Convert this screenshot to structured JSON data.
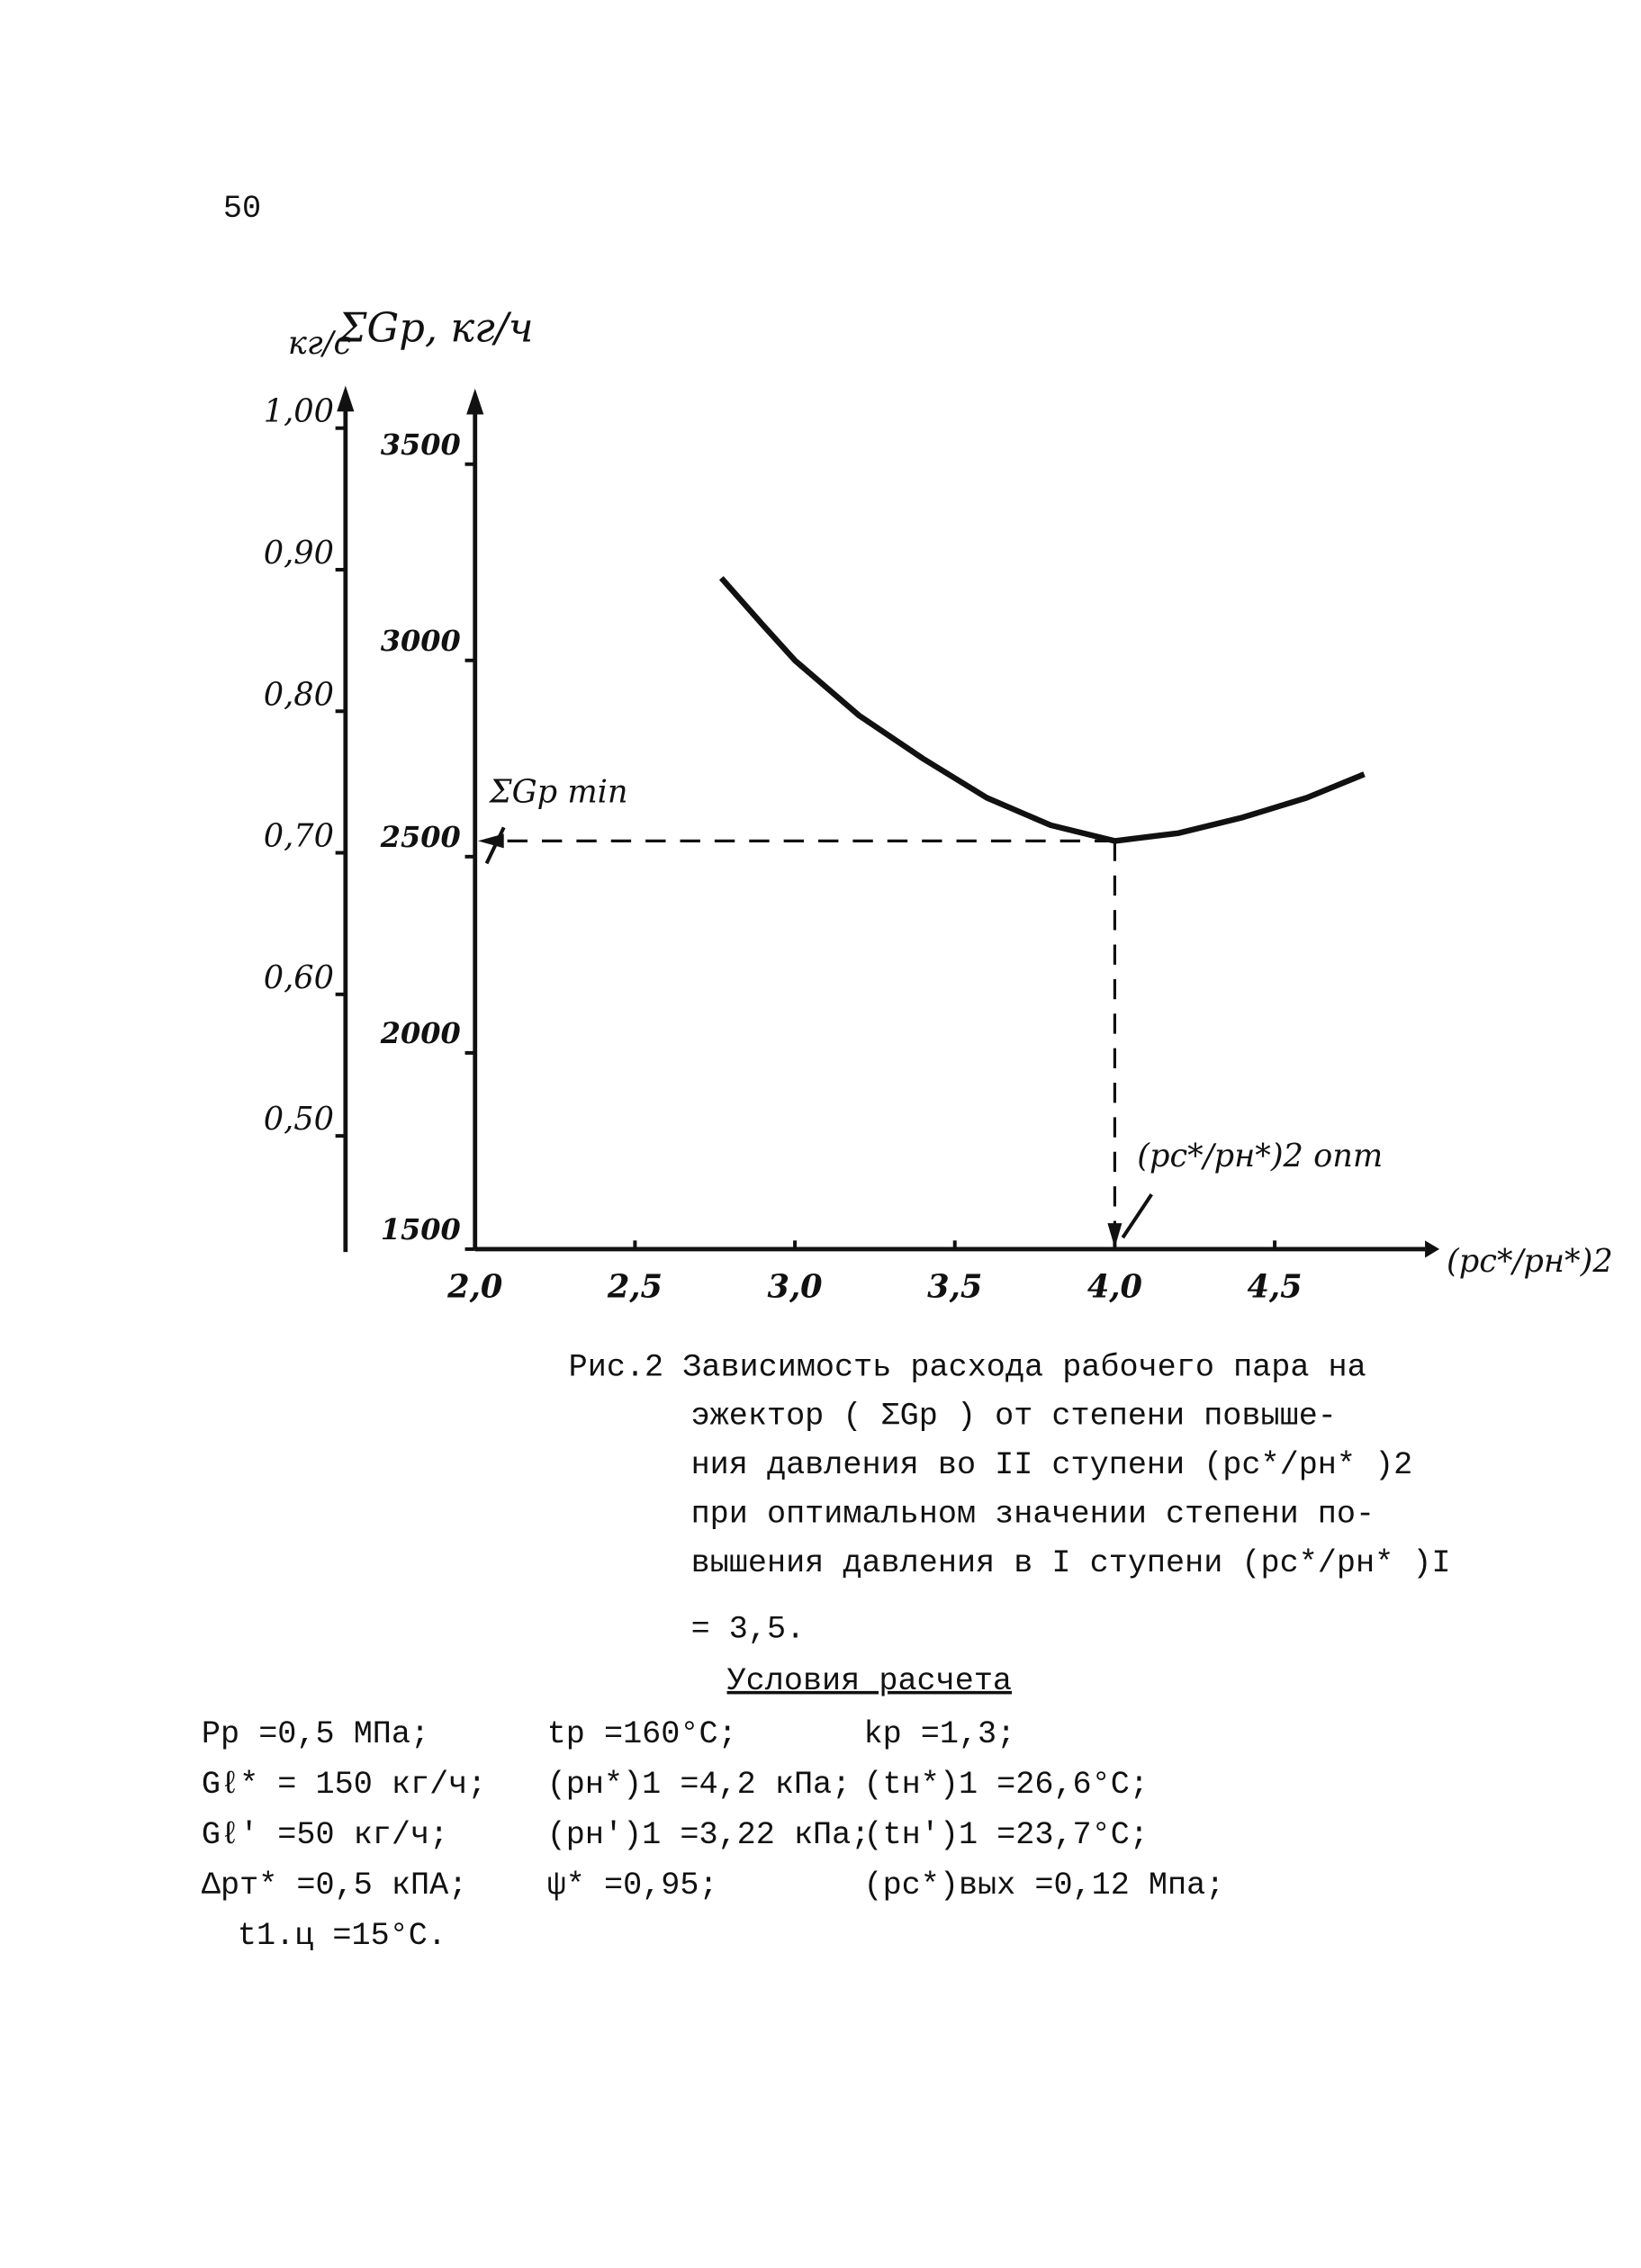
{
  "page_number": "50",
  "chart_data": {
    "type": "line",
    "y_label": "ΣGp, кг/ч",
    "y2_label": "кг/с",
    "x_label": "(pc*/pн*)2",
    "annotations": [
      "ΣGp min",
      "(pc*/pн*)2 опт"
    ],
    "x": [
      2.77,
      2.9,
      3.0,
      3.2,
      3.4,
      3.6,
      3.8,
      4.0,
      4.2,
      4.4,
      4.6,
      4.78
    ],
    "series": [
      {
        "name": "ΣGp",
        "color": "#111111",
        "values": [
          3210,
          3090,
          3000,
          2860,
          2750,
          2650,
          2580,
          2540,
          2560,
          2600,
          2650,
          2710
        ]
      }
    ],
    "xlim": [
      2.0,
      4.97
    ],
    "xticks": [
      {
        "value": 2.0,
        "label": "2,0"
      },
      {
        "value": 2.5,
        "label": "2,5"
      },
      {
        "value": 3.0,
        "label": "3,0"
      },
      {
        "value": 3.5,
        "label": "3,5"
      },
      {
        "value": 4.0,
        "label": "4,0"
      },
      {
        "value": 4.5,
        "label": "4,5"
      }
    ],
    "ylim": [
      1500,
      3700
    ],
    "yticks": [
      1500,
      2000,
      2500,
      3000,
      3500
    ],
    "y2lim": [
      0.42,
      1.03
    ],
    "y2ticks": [
      {
        "value": 0.5,
        "label": "0,50"
      },
      {
        "value": 0.6,
        "label": "0,60"
      },
      {
        "value": 0.7,
        "label": "0,70"
      },
      {
        "value": 0.8,
        "label": "0,80"
      },
      {
        "value": 0.9,
        "label": "0,90"
      },
      {
        "value": 1.0,
        "label": "1,00"
      }
    ]
  },
  "caption": [
    "Рис.2 Зависимость расхода рабочего пара на",
    "эжектор ( ΣGр ) от степени повыше-",
    "ния давления во II ступени (pc*/pн* )2",
    "при оптимальном значении степени по-",
    "вышения давления в I ступени (pc*/pн* )I",
    "= 3,5."
  ],
  "conditions": {
    "title": "Условия расчета",
    "rows": [
      [
        "Pр =0,5 МПа;",
        "tр =160°C;",
        "kр =1,3;"
      ],
      [
        "Gℓ* = 150 кг/ч;",
        "(pн*)1 =4,2 кПа;",
        "(tн*)1 =26,6°C;"
      ],
      [
        "Gℓ' =50 кг/ч;",
        "(pн')1 =3,22 кПа;",
        "(tн')1 =23,7°C;"
      ],
      [
        "Δpт* =0,5 кПА;",
        "ψ* =0,95;",
        "(pc*)вых =0,12 Мпа;"
      ],
      [
        "t1.ц =15°C."
      ]
    ]
  }
}
